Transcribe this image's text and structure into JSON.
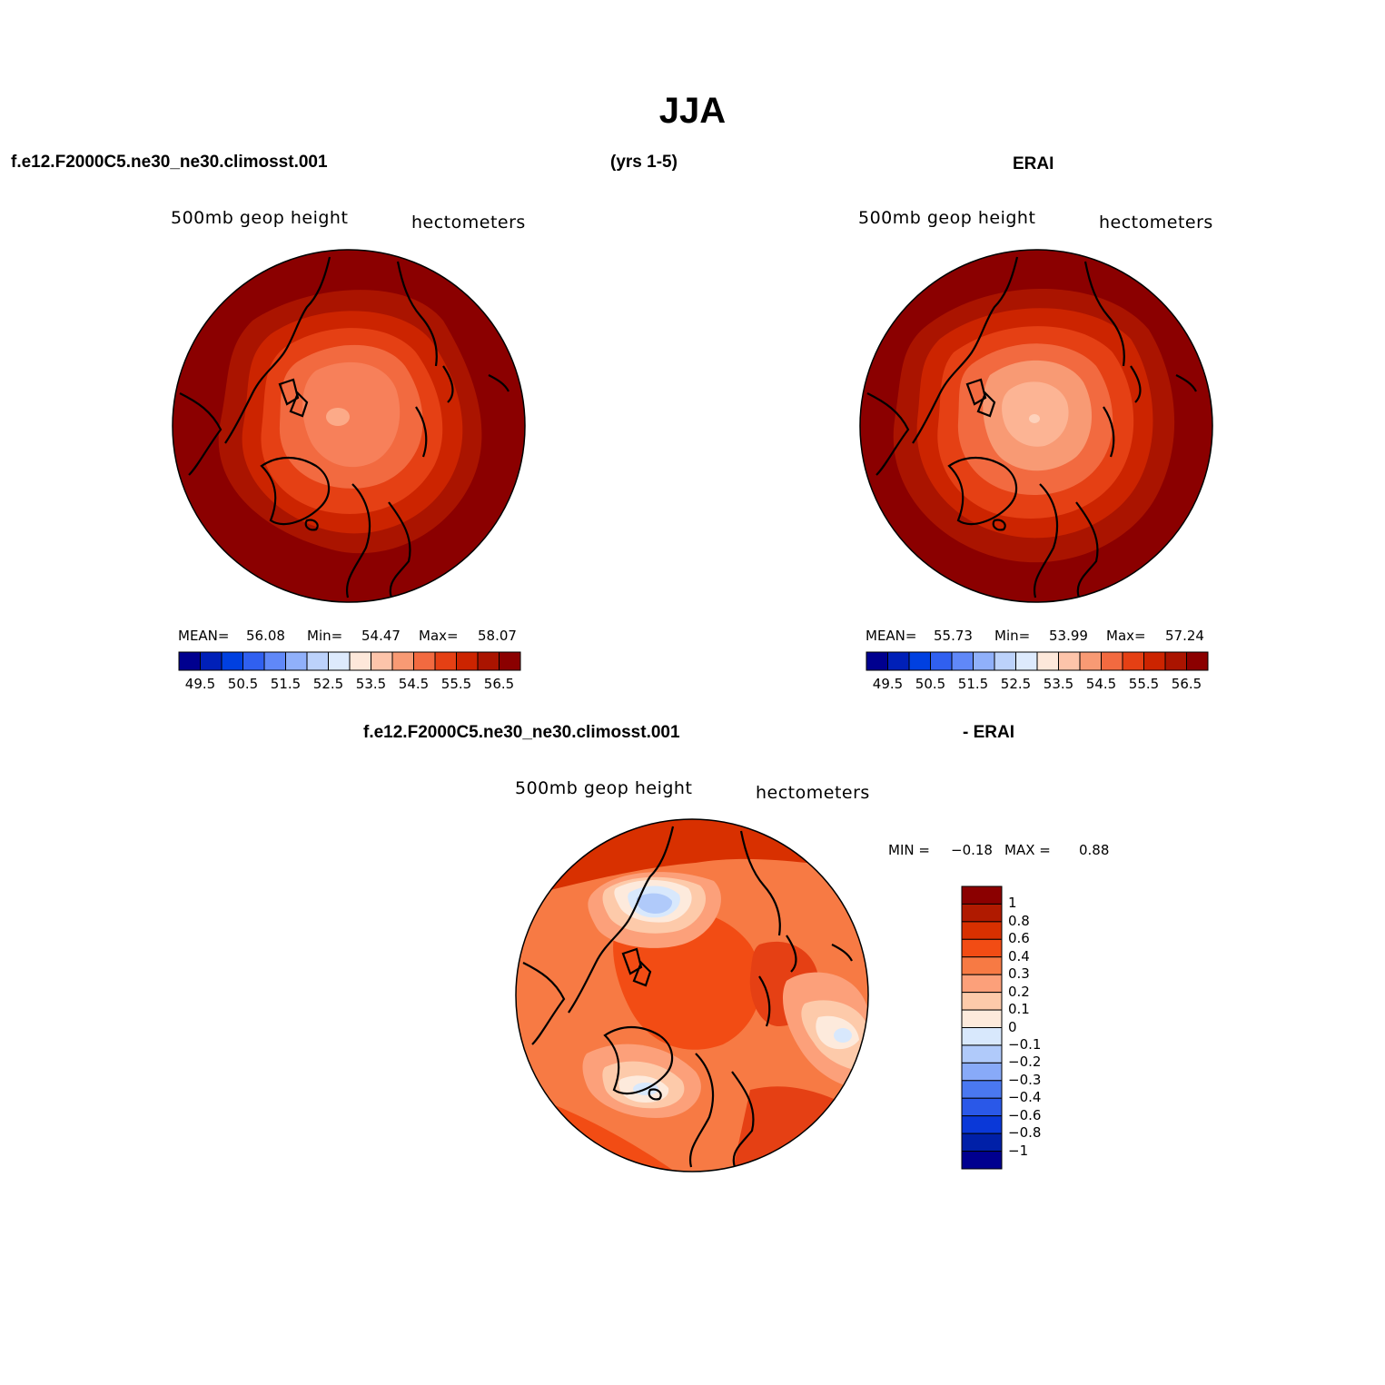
{
  "title": "JJA",
  "header": {
    "case_name": "f.e12.F2000C5.ne30_ne30.climosst.001",
    "years": "(yrs 1-5)",
    "reference": "ERAI"
  },
  "panels": {
    "model": {
      "variable": "500mb geop height",
      "units": "hectometers",
      "stats": {
        "mean_label": "MEAN=",
        "mean": "56.08",
        "min_label": "Min=",
        "min": "54.47",
        "max_label": "Max=",
        "max": "58.07"
      }
    },
    "obs": {
      "variable": "500mb geop height",
      "units": "hectometers",
      "stats": {
        "mean_label": "MEAN=",
        "mean": "55.73",
        "min_label": "Min=",
        "min": "53.99",
        "max_label": "Max=",
        "max": "57.24"
      }
    },
    "diff": {
      "title_left": "f.e12.F2000C5.ne30_ne30.climosst.001",
      "title_right": "- ERAI",
      "variable": "500mb geop height",
      "units": "hectometers",
      "stats": {
        "min_label": "MIN =",
        "min": "−0.18",
        "max_label": "MAX =",
        "max": "0.88"
      }
    }
  },
  "colorbar_abs": {
    "colors": [
      "#00008f",
      "#0020b8",
      "#0040e0",
      "#3060f0",
      "#6088f8",
      "#90b0fa",
      "#bcd2fb",
      "#ddeafd",
      "#fde8da",
      "#fdc4aa",
      "#f89a74",
      "#f26a40",
      "#e54014",
      "#cc2400",
      "#aa1400",
      "#8b0000"
    ],
    "tick_labels": [
      "49.5",
      "50.5",
      "51.5",
      "52.5",
      "53.5",
      "54.5",
      "55.5",
      "56.5"
    ]
  },
  "colorbar_diff": {
    "colors_top_to_bottom": [
      "#8b0000",
      "#b01a00",
      "#d83000",
      "#f24c14",
      "#f77a44",
      "#fca07a",
      "#fdcaaa",
      "#fdeadc",
      "#d8e8fc",
      "#b0cafa",
      "#88aaf8",
      "#4a78f0",
      "#2a58e8",
      "#0a38d8",
      "#0020a8",
      "#00008f"
    ],
    "tick_labels": [
      "1",
      "0.8",
      "0.6",
      "0.4",
      "0.3",
      "0.2",
      "0.1",
      "0",
      "−0.1",
      "−0.2",
      "−0.3",
      "−0.4",
      "−0.6",
      "−0.8",
      "−1"
    ]
  }
}
